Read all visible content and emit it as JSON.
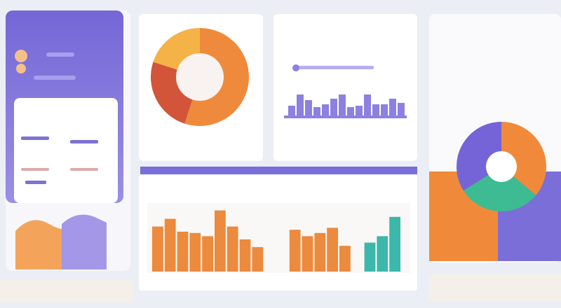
{
  "donut_main": {
    "segments": [
      {
        "color": "#ef8a3c",
        "value": 55
      },
      {
        "color": "#d2553a",
        "value": 25
      },
      {
        "color": "#f5b246",
        "value": 20
      }
    ]
  },
  "donut_side": {
    "segments": [
      {
        "color": "#f08a3a",
        "value": 36
      },
      {
        "color": "#3dbb92",
        "value": 30
      },
      {
        "color": "#7464d8",
        "value": 34
      }
    ]
  },
  "top_bars": {
    "ymax": 100,
    "series": [
      {
        "color": "#8d80e0",
        "values": [
          35,
          75,
          55,
          30,
          40,
          60,
          75,
          30,
          35,
          75,
          40,
          40,
          60,
          45
        ]
      }
    ]
  },
  "bottom_bars": {
    "ymax": 100,
    "series": [
      {
        "color": "#ec8a3e",
        "values": [
          70,
          82,
          62,
          60,
          55,
          95,
          70,
          50,
          38,
          0,
          0,
          65,
          55,
          60,
          68,
          40,
          0
        ]
      },
      {
        "color": "#3cb7aa",
        "values": [
          0,
          0,
          0,
          0,
          0,
          0,
          0,
          0,
          0,
          0,
          0,
          0,
          0,
          0,
          0,
          0,
          0,
          45,
          55,
          85
        ]
      }
    ]
  }
}
